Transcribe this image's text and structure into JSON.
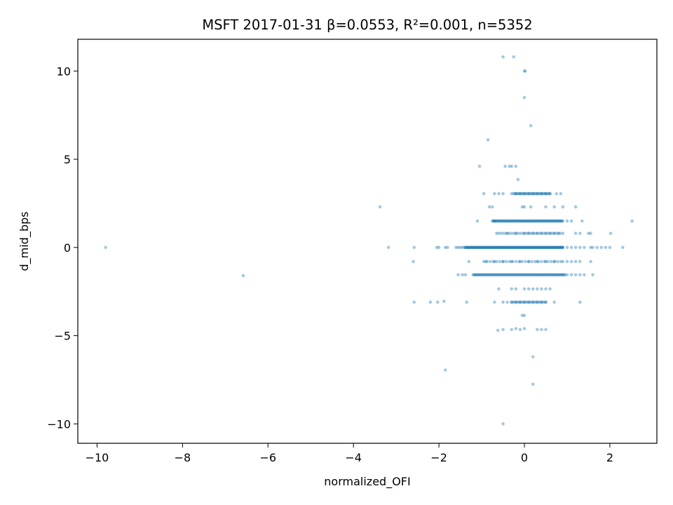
{
  "chart_data": {
    "type": "scatter",
    "title": "MSFT 2017-01-31  β=0.0553, R²=0.001, n=5352",
    "xlabel": "normalized_OFI",
    "ylabel": "d_mid_bps",
    "xlim": [
      -10.45,
      3.1
    ],
    "ylim": [
      -11.1,
      11.8
    ],
    "xticks": [
      -10,
      -8,
      -6,
      -4,
      -2,
      0,
      2
    ],
    "xtick_labels": [
      "−10",
      "−8",
      "−6",
      "−4",
      "−2",
      "0",
      "2"
    ],
    "yticks": [
      -10,
      -5,
      0,
      5,
      10
    ],
    "ytick_labels": [
      "−10",
      "−5",
      "0",
      "5",
      "10"
    ],
    "grid": false,
    "point_color": "#1f77b4",
    "point_opacity": 0.4,
    "series": [
      {
        "points": [
          [
            -9.8,
            0.0
          ],
          [
            -6.58,
            -1.6
          ],
          [
            -3.38,
            2.3
          ],
          [
            -3.18,
            0.0
          ],
          [
            -2.58,
            0.0
          ],
          [
            -2.6,
            -0.8
          ],
          [
            -2.58,
            -3.1
          ],
          [
            -2.2,
            -3.1
          ],
          [
            -2.03,
            -3.1
          ],
          [
            -1.88,
            -3.05
          ],
          [
            -1.85,
            -6.95
          ],
          [
            -2.05,
            0.0
          ],
          [
            -2.0,
            0.0
          ],
          [
            -1.85,
            0.0
          ],
          [
            -1.8,
            0.0
          ],
          [
            -1.6,
            0.0
          ],
          [
            -1.55,
            0.0
          ],
          [
            -1.5,
            0.0
          ],
          [
            -1.45,
            0.0
          ],
          [
            -1.55,
            -1.55
          ],
          [
            -1.45,
            -1.55
          ],
          [
            -1.38,
            -1.55
          ],
          [
            -1.35,
            -3.1
          ],
          [
            -1.3,
            -0.8
          ],
          [
            -1.1,
            1.5
          ],
          [
            -1.05,
            4.6
          ],
          [
            -0.95,
            3.05
          ],
          [
            -0.85,
            6.1
          ],
          [
            -0.82,
            2.3
          ],
          [
            -0.75,
            2.3
          ],
          [
            -0.7,
            1.5
          ],
          [
            -0.65,
            0.8
          ],
          [
            -0.6,
            -2.35
          ],
          [
            -0.62,
            -4.7
          ],
          [
            -0.5,
            -4.65
          ],
          [
            -0.45,
            4.6
          ],
          [
            -0.35,
            4.6
          ],
          [
            -0.3,
            4.6
          ],
          [
            -0.2,
            4.6
          ],
          [
            -0.5,
            10.8
          ],
          [
            -0.25,
            10.8
          ],
          [
            0.0,
            10.0
          ],
          [
            0.02,
            10.0
          ],
          [
            0.0,
            8.5
          ],
          [
            0.15,
            6.9
          ],
          [
            -0.15,
            3.85
          ],
          [
            0.0,
            2.3
          ],
          [
            -0.05,
            2.3
          ],
          [
            0.15,
            2.3
          ],
          [
            0.5,
            2.3
          ],
          [
            0.7,
            2.3
          ],
          [
            0.9,
            2.3
          ],
          [
            1.2,
            2.3
          ],
          [
            0.75,
            3.05
          ],
          [
            0.85,
            3.05
          ],
          [
            0.2,
            3.05
          ],
          [
            0.3,
            3.05
          ],
          [
            0.4,
            3.05
          ],
          [
            0.5,
            3.05
          ],
          [
            0.6,
            3.05
          ],
          [
            -0.5,
            3.05
          ],
          [
            -0.3,
            3.05
          ],
          [
            -0.2,
            3.05
          ],
          [
            -0.1,
            3.05
          ],
          [
            0.0,
            3.05
          ],
          [
            0.1,
            3.05
          ],
          [
            -0.7,
            3.05
          ],
          [
            -0.6,
            3.05
          ],
          [
            1.0,
            1.5
          ],
          [
            1.1,
            1.5
          ],
          [
            1.35,
            1.5
          ],
          [
            1.2,
            0.8
          ],
          [
            1.3,
            0.8
          ],
          [
            1.5,
            0.8
          ],
          [
            1.55,
            0.8
          ],
          [
            2.02,
            0.8
          ],
          [
            2.52,
            1.5
          ],
          [
            0.9,
            0.0
          ],
          [
            1.0,
            0.0
          ],
          [
            1.1,
            0.0
          ],
          [
            1.2,
            0.0
          ],
          [
            1.3,
            0.0
          ],
          [
            1.4,
            0.0
          ],
          [
            1.55,
            0.0
          ],
          [
            1.6,
            0.0
          ],
          [
            1.7,
            0.0
          ],
          [
            1.8,
            0.0
          ],
          [
            1.9,
            0.0
          ],
          [
            2.0,
            0.0
          ],
          [
            2.3,
            0.0
          ],
          [
            0.9,
            -0.8
          ],
          [
            1.0,
            -0.8
          ],
          [
            1.1,
            -0.8
          ],
          [
            1.2,
            -0.8
          ],
          [
            1.3,
            -0.8
          ],
          [
            1.55,
            -0.8
          ],
          [
            1.0,
            -1.55
          ],
          [
            1.1,
            -1.55
          ],
          [
            1.2,
            -1.55
          ],
          [
            1.3,
            -1.55
          ],
          [
            1.4,
            -1.55
          ],
          [
            1.6,
            -1.55
          ],
          [
            0.5,
            -3.1
          ],
          [
            0.7,
            -3.1
          ],
          [
            1.3,
            -3.1
          ],
          [
            -0.7,
            -3.1
          ],
          [
            -0.5,
            -3.1
          ],
          [
            -0.4,
            -3.1
          ],
          [
            -0.3,
            -3.1
          ],
          [
            -0.2,
            -3.1
          ],
          [
            -0.1,
            -3.1
          ],
          [
            0.0,
            -3.1
          ],
          [
            0.1,
            -3.1
          ],
          [
            0.2,
            -3.1
          ],
          [
            0.3,
            -3.1
          ],
          [
            0.4,
            -3.1
          ],
          [
            -0.05,
            -3.85
          ],
          [
            0.0,
            -3.85
          ],
          [
            -0.3,
            -4.65
          ],
          [
            -0.2,
            -4.6
          ],
          [
            -0.1,
            -4.65
          ],
          [
            0.0,
            -4.6
          ],
          [
            0.3,
            -4.65
          ],
          [
            0.4,
            -4.65
          ],
          [
            0.5,
            -4.65
          ],
          [
            0.2,
            -6.2
          ],
          [
            0.2,
            -7.75
          ],
          [
            -0.5,
            -10.0
          ],
          [
            -0.4,
            0.8
          ],
          [
            -0.2,
            0.8
          ],
          [
            0.0,
            0.8
          ],
          [
            0.1,
            0.8
          ],
          [
            0.2,
            0.8
          ],
          [
            0.3,
            0.8
          ],
          [
            0.4,
            0.8
          ],
          [
            0.5,
            0.8
          ],
          [
            0.6,
            0.8
          ],
          [
            0.7,
            0.8
          ],
          [
            0.8,
            0.8
          ],
          [
            -0.9,
            -0.8
          ],
          [
            -0.7,
            -0.8
          ],
          [
            -0.5,
            -0.8
          ],
          [
            -0.3,
            -0.8
          ],
          [
            -0.1,
            -0.8
          ],
          [
            0.1,
            -0.8
          ],
          [
            0.3,
            -0.8
          ],
          [
            0.5,
            -0.8
          ],
          [
            0.7,
            -0.8
          ],
          [
            -0.3,
            -2.35
          ],
          [
            -0.2,
            -2.35
          ],
          [
            0.0,
            -2.35
          ],
          [
            0.1,
            -2.35
          ],
          [
            0.2,
            -2.35
          ],
          [
            0.3,
            -2.35
          ],
          [
            0.4,
            -2.35
          ],
          [
            0.5,
            -2.35
          ],
          [
            0.6,
            -2.35
          ]
        ]
      }
    ],
    "dense_bands": [
      {
        "y": 0.0,
        "x_from": -1.4,
        "x_to": 0.9,
        "count": 170
      },
      {
        "y": 1.5,
        "x_from": -0.75,
        "x_to": 0.9,
        "count": 90
      },
      {
        "y": -1.55,
        "x_from": -1.2,
        "x_to": 0.95,
        "count": 100
      },
      {
        "y": 3.05,
        "x_from": -0.25,
        "x_to": 0.6,
        "count": 30
      },
      {
        "y": -3.1,
        "x_from": -0.3,
        "x_to": 0.5,
        "count": 20
      },
      {
        "y": 0.8,
        "x_from": -0.6,
        "x_to": 0.9,
        "count": 25
      },
      {
        "y": -0.8,
        "x_from": -0.95,
        "x_to": 0.85,
        "count": 25
      }
    ]
  }
}
